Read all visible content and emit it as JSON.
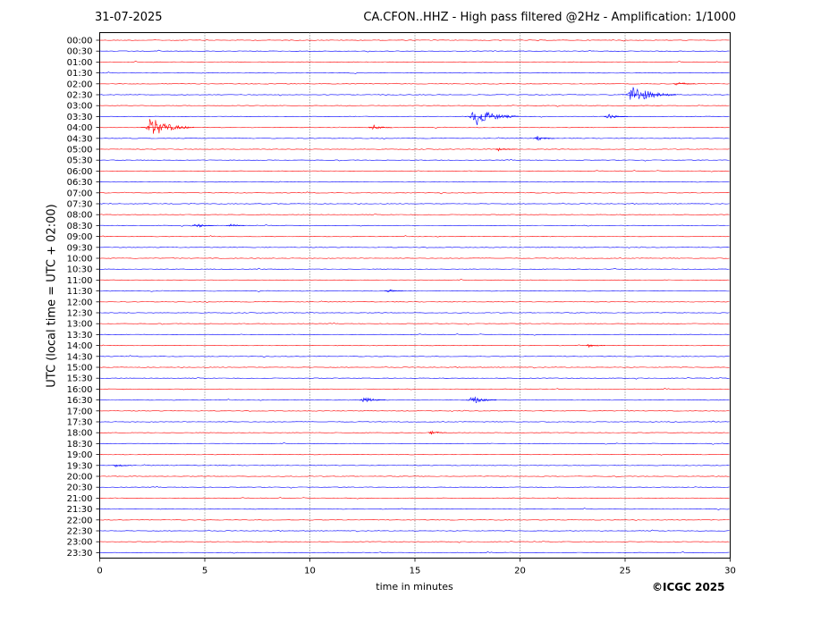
{
  "header": {
    "date": "31-07-2025",
    "station_title": "CA.CFON..HHZ - High pass filtered @2Hz - Amplification: 1/1000"
  },
  "footer": {
    "copyright": "©ICGC 2025"
  },
  "chart_data": {
    "type": "line",
    "title": "CA.CFON..HHZ - High pass filtered @2Hz - Amplification: 1/1000",
    "xlabel": "time in minutes",
    "ylabel": "UTC (local time = UTC + 02:00)",
    "xlim": [
      0,
      30
    ],
    "x_ticks": [
      0,
      5,
      10,
      15,
      20,
      25,
      30
    ],
    "x_tick_labels": [
      "0",
      "5",
      "10",
      "15",
      "20",
      "25",
      "30"
    ],
    "vertical_grid": "dotted at 5-minute intervals",
    "row_labels": [
      "00:00",
      "00:30",
      "01:00",
      "01:30",
      "02:00",
      "02:30",
      "03:00",
      "03:30",
      "04:00",
      "04:30",
      "05:00",
      "05:30",
      "06:00",
      "06:30",
      "07:00",
      "07:30",
      "08:00",
      "08:30",
      "09:00",
      "09:30",
      "10:00",
      "10:30",
      "11:00",
      "11:30",
      "12:00",
      "12:30",
      "13:00",
      "13:30",
      "14:00",
      "14:30",
      "15:00",
      "15:30",
      "16:00",
      "16:30",
      "17:00",
      "17:30",
      "18:00",
      "18:30",
      "19:00",
      "19:30",
      "20:00",
      "20:30",
      "21:00",
      "21:30",
      "22:00",
      "22:30",
      "23:00",
      "23:30"
    ],
    "row_colors": {
      "hour": "#ff0000",
      "half_hour": "#0000ff"
    },
    "events": [
      {
        "row": "02:00",
        "minute": 27.5,
        "amplitude": 0.25
      },
      {
        "row": "02:30",
        "minute": 25.3,
        "amplitude": 1.0
      },
      {
        "row": "03:30",
        "minute": 17.8,
        "amplitude": 1.0
      },
      {
        "row": "03:30",
        "minute": 24.2,
        "amplitude": 0.3
      },
      {
        "row": "04:00",
        "minute": 2.4,
        "amplitude": 1.0
      },
      {
        "row": "04:00",
        "minute": 13.0,
        "amplitude": 0.3
      },
      {
        "row": "04:30",
        "minute": 20.8,
        "amplitude": 0.25
      },
      {
        "row": "05:00",
        "minute": 19.0,
        "amplitude": 0.2
      },
      {
        "row": "08:30",
        "minute": 4.6,
        "amplitude": 0.25
      },
      {
        "row": "08:30",
        "minute": 6.2,
        "amplitude": 0.2
      },
      {
        "row": "11:30",
        "minute": 13.7,
        "amplitude": 0.2
      },
      {
        "row": "14:00",
        "minute": 23.3,
        "amplitude": 0.2
      },
      {
        "row": "16:30",
        "minute": 12.6,
        "amplitude": 0.35
      },
      {
        "row": "16:30",
        "minute": 17.7,
        "amplitude": 0.45
      },
      {
        "row": "18:00",
        "minute": 15.8,
        "amplitude": 0.2
      },
      {
        "row": "19:30",
        "minute": 0.8,
        "amplitude": 0.2
      }
    ]
  }
}
